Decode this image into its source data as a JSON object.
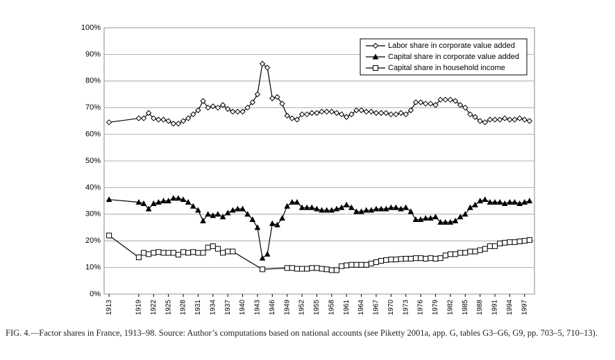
{
  "chart_data": {
    "type": "line",
    "caption": "FIG. 4.—Factor shares in France, 1913–98. Source: Author’s computations based on national accounts (see Piketty 2001a, app. G, tables G3–G6, G9, pp. 703–5, 710–13).",
    "x": [
      1913,
      1919,
      1920,
      1921,
      1922,
      1923,
      1924,
      1925,
      1926,
      1927,
      1928,
      1929,
      1930,
      1931,
      1932,
      1933,
      1934,
      1935,
      1936,
      1937,
      1938,
      1939,
      1940,
      1941,
      1942,
      1943,
      1944,
      1945,
      1946,
      1947,
      1948,
      1949,
      1950,
      1951,
      1952,
      1953,
      1954,
      1955,
      1956,
      1957,
      1958,
      1959,
      1960,
      1961,
      1962,
      1963,
      1964,
      1965,
      1966,
      1967,
      1968,
      1969,
      1970,
      1971,
      1972,
      1973,
      1974,
      1975,
      1976,
      1977,
      1978,
      1979,
      1980,
      1981,
      1982,
      1983,
      1984,
      1985,
      1986,
      1987,
      1988,
      1989,
      1990,
      1991,
      1992,
      1993,
      1994,
      1995,
      1996,
      1997,
      1998
    ],
    "series": [
      {
        "name": "Labor share in corporate value added",
        "color": "#000000",
        "marker": "diamond",
        "values": [
          64.5,
          66,
          66,
          68,
          66,
          65.5,
          65.5,
          65,
          64,
          64,
          65,
          66,
          67.5,
          69,
          72.5,
          70,
          70.5,
          70,
          71,
          69.5,
          68.5,
          68.5,
          68.5,
          70,
          72,
          75,
          86.5,
          85,
          73.5,
          74,
          71.5,
          67,
          66,
          65.5,
          67.5,
          67.5,
          68,
          68,
          68.5,
          68.5,
          68.5,
          68,
          67.5,
          66.5,
          67.5,
          69,
          69,
          68.5,
          68.5,
          68,
          68,
          68,
          67.5,
          67.5,
          68,
          67.5,
          69,
          72,
          72,
          71.5,
          71.5,
          71,
          73,
          73,
          73,
          72.5,
          71,
          70,
          67.5,
          66.5,
          65,
          64.5,
          65.5,
          65.5,
          65.5,
          66,
          65.5,
          65.5,
          66,
          65.5,
          65
        ]
      },
      {
        "name": "Capital share in corporate value added",
        "color": "#000000",
        "marker": "triangle",
        "values": [
          35.5,
          34.5,
          34,
          32,
          34,
          34.5,
          35,
          35,
          36,
          36,
          35.5,
          34.5,
          33,
          31.5,
          27.5,
          30,
          29.5,
          30,
          29,
          30.5,
          31.5,
          32,
          32,
          30,
          28,
          25,
          13.5,
          15,
          26.5,
          26,
          28.5,
          33,
          34.5,
          34.5,
          32.5,
          32.5,
          32.5,
          32,
          31.5,
          31.5,
          31.5,
          32,
          32.5,
          33.5,
          32.5,
          31,
          31,
          31.5,
          31.5,
          32,
          32,
          32,
          32.5,
          32.5,
          32,
          32.5,
          31,
          28,
          28,
          28.5,
          28.5,
          29,
          27,
          27,
          27,
          27.5,
          29,
          30,
          32.5,
          33.5,
          35,
          35.5,
          34.5,
          34.5,
          34.5,
          34,
          34.5,
          34.5,
          34,
          34.5,
          35
        ]
      },
      {
        "name": "Capital share in household income",
        "color": "#000000",
        "marker": "square",
        "x": [
          1913,
          1919,
          1920,
          1921,
          1922,
          1923,
          1924,
          1925,
          1926,
          1927,
          1928,
          1929,
          1930,
          1931,
          1932,
          1933,
          1934,
          1935,
          1936,
          1937,
          1938,
          1944,
          1949,
          1950,
          1951,
          1952,
          1953,
          1954,
          1955,
          1956,
          1957,
          1958,
          1959,
          1960,
          1961,
          1962,
          1963,
          1964,
          1965,
          1966,
          1967,
          1968,
          1969,
          1970,
          1971,
          1972,
          1973,
          1974,
          1975,
          1976,
          1977,
          1978,
          1979,
          1980,
          1981,
          1982,
          1983,
          1984,
          1985,
          1986,
          1987,
          1988,
          1989,
          1990,
          1991,
          1992,
          1993,
          1994,
          1995,
          1996,
          1997,
          1998
        ],
        "values": [
          22,
          13.8,
          15.5,
          15,
          15.5,
          15.8,
          15.5,
          15.5,
          15.5,
          14.8,
          15.8,
          15.5,
          15.8,
          15.5,
          15.5,
          17.5,
          18,
          17,
          15.5,
          16,
          16,
          9.3,
          9.8,
          9.8,
          9.5,
          9.5,
          9.5,
          9.8,
          9.8,
          9.5,
          9.3,
          9,
          9,
          10.5,
          10.8,
          11,
          11,
          11,
          11,
          11.5,
          12,
          12.5,
          12.8,
          13,
          13,
          13.2,
          13.3,
          13.3,
          13.5,
          13.5,
          13.3,
          13.5,
          13.3,
          13.5,
          14.5,
          15,
          15,
          15.5,
          15.5,
          16,
          16,
          16.5,
          17,
          18,
          18,
          19,
          19.3,
          19.5,
          19.5,
          19.8,
          20,
          20.3
        ]
      }
    ],
    "xlim": [
      1912,
      1999
    ],
    "xticks": [
      1913,
      1919,
      1922,
      1925,
      1928,
      1931,
      1934,
      1937,
      1940,
      1943,
      1946,
      1949,
      1952,
      1955,
      1958,
      1961,
      1964,
      1967,
      1970,
      1973,
      1976,
      1979,
      1982,
      1985,
      1988,
      1991,
      1994,
      1997
    ],
    "ylim": [
      0,
      100
    ],
    "yticks": [
      {
        "value": 0,
        "label": "0%"
      },
      {
        "value": 10,
        "label": "10%"
      },
      {
        "value": 20,
        "label": "20%"
      },
      {
        "value": 30,
        "label": "30%"
      },
      {
        "value": 40,
        "label": "40%"
      },
      {
        "value": 50,
        "label": "50%"
      },
      {
        "value": 60,
        "label": "60%"
      },
      {
        "value": 70,
        "label": "70%"
      },
      {
        "value": 80,
        "label": "80%"
      },
      {
        "value": 90,
        "label": "90%"
      },
      {
        "value": 100,
        "label": "100%"
      }
    ],
    "grid": true,
    "legend": "upper right"
  }
}
